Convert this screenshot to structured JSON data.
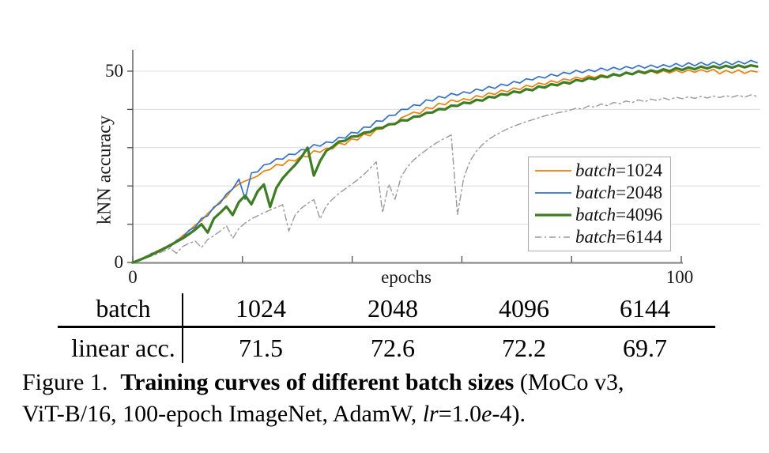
{
  "axes": {
    "y_label": "kNN accuracy",
    "x_label": "epochs",
    "y_tick_top": "50",
    "y_tick_bottom": "0",
    "x_tick_left": "0",
    "x_tick_right": "100"
  },
  "table": {
    "row1_label": "batch",
    "row2_label": "linear acc.",
    "row1_values": [
      "1024",
      "2048",
      "4096",
      "6144"
    ],
    "row2_values": [
      "71.5",
      "72.6",
      "72.2",
      "69.7"
    ]
  },
  "caption": {
    "label": "Figure 1.",
    "title": "Training curves of different batch sizes",
    "after_title": " (MoCo v3,",
    "line2_pre": "ViT-B/16, 100-epoch ImageNet, AdamW, ",
    "lr": "lr",
    "eq": "=1.0",
    "e": "e",
    "tail": "-4)."
  },
  "chart_data": {
    "type": "line",
    "title": "",
    "xlabel": "epochs",
    "ylabel": "kNN accuracy",
    "xlim": [
      0,
      100
    ],
    "ylim": [
      0,
      55
    ],
    "x_step": 1,
    "grid_on": true,
    "grid_values": [
      10,
      20,
      30,
      40,
      50
    ],
    "x_tick_epochs": [
      0,
      20,
      40,
      60,
      80,
      100
    ],
    "y_tick_values": [
      0,
      10,
      20,
      30,
      40,
      50
    ],
    "legend_position": "lower right",
    "axis_color": "#4d4d4d",
    "x_axis_color": "#8c8c8c",
    "grid_color": "#dcdcdc",
    "series": [
      {
        "key": "batch1024",
        "label_name": "batch",
        "label_value": "=1024",
        "color": "#E8820C",
        "width": 1.7,
        "dash": null,
        "values": [
          0,
          0.7,
          1.5,
          2.2,
          3.1,
          3.8,
          4.7,
          5.6,
          7,
          8.2,
          9.8,
          10.9,
          12.8,
          14.2,
          16,
          17.2,
          19.3,
          20.5,
          21.3,
          21.9,
          22.6,
          23.9,
          24.3,
          25.6,
          25.4,
          26.8,
          26.5,
          27.9,
          27.6,
          29.2,
          28.8,
          29.9,
          29.7,
          31.2,
          30.8,
          32.3,
          32,
          33.6,
          33.1,
          34.8,
          34.9,
          36.3,
          36,
          37.8,
          38.5,
          39.3,
          38.9,
          40.5,
          40.2,
          41.6,
          41.2,
          42.5,
          42,
          42.8,
          42.4,
          43.6,
          43.2,
          44.3,
          43.9,
          45,
          44.6,
          45.6,
          45.2,
          46.3,
          45.9,
          46.9,
          46.5,
          47.5,
          47,
          48,
          47.6,
          48.4,
          48,
          48.8,
          48.3,
          49.1,
          48.6,
          49.4,
          48.9,
          49.6,
          49.1,
          49.8,
          49.3,
          50,
          49.4,
          50.1,
          49.5,
          50.2,
          49.6,
          50.3,
          49.7,
          50.4,
          49.8,
          50.5,
          49.3,
          50.2,
          49.5,
          50.3,
          49.4,
          50.1,
          49.8
        ]
      },
      {
        "key": "batch2048",
        "label_name": "batch",
        "label_value": "=2048",
        "color": "#3572C6",
        "width": 1.7,
        "dash": null,
        "values": [
          0,
          0.8,
          1.1,
          2.4,
          2.7,
          3.9,
          4.1,
          5.8,
          6.5,
          8.4,
          9.2,
          11.5,
          12.2,
          14.5,
          15.5,
          17.9,
          19.2,
          21.8,
          16.5,
          23.4,
          23.7,
          25.5,
          25.8,
          27.1,
          27,
          28.3,
          28.2,
          29.5,
          29.4,
          30.8,
          30.4,
          31.5,
          31.3,
          32.7,
          32.5,
          34,
          33.8,
          35.4,
          35.3,
          37,
          36.9,
          38.4,
          38.5,
          40,
          40,
          41.2,
          41,
          42.5,
          42.2,
          43.4,
          43,
          44.2,
          43.7,
          44.6,
          44.2,
          45.3,
          44.9,
          46,
          45.5,
          46.6,
          46.2,
          47.3,
          46.9,
          48,
          47.7,
          48.6,
          48.2,
          49.2,
          48.7,
          49.7,
          49.3,
          50.2,
          49.6,
          50.4,
          49.9,
          50.8,
          50.2,
          51,
          50.4,
          51.2,
          50.7,
          51.5,
          50.8,
          51.6,
          50.9,
          51.7,
          51.1,
          52,
          51.2,
          52.2,
          51.4,
          52.3,
          51.5,
          52.4,
          51.6,
          52.5,
          51.7,
          52.6,
          51.9,
          52.8,
          52.2
        ]
      },
      {
        "key": "batch4096",
        "label_name": "batch",
        "label_value": "=4096",
        "color": "#3E7D23",
        "width": 3.2,
        "dash": null,
        "values": [
          0,
          0.6,
          1.3,
          2,
          2.8,
          3.6,
          4.5,
          5.4,
          6.3,
          7.4,
          8.6,
          10,
          7.8,
          11.5,
          13,
          14.6,
          12.4,
          15.8,
          17.5,
          15.2,
          18.6,
          20.4,
          14.5,
          19.5,
          22,
          23.8,
          25.5,
          27.5,
          30,
          22.7,
          26.5,
          29.2,
          30.2,
          31.6,
          31.8,
          32.9,
          33,
          33.9,
          34.1,
          35.1,
          35.2,
          36.1,
          36.2,
          37.2,
          37.1,
          38.1,
          38.2,
          39.1,
          39.2,
          40.1,
          40,
          41,
          40.9,
          41.8,
          41.6,
          42.5,
          42.3,
          43.3,
          43.1,
          44,
          43.8,
          44.7,
          44.4,
          45.3,
          45,
          46,
          45.7,
          46.6,
          46.3,
          47.1,
          46.8,
          47.7,
          47.4,
          48.2,
          47.9,
          48.7,
          48.4,
          49.2,
          48.8,
          49.6,
          49.2,
          50,
          49.5,
          50.2,
          49.8,
          50.5,
          50,
          50.8,
          50.3,
          51,
          50.5,
          51.2,
          50.7,
          51.3,
          50.8,
          51.4,
          50.9,
          51.5,
          51,
          51.5,
          51.2
        ]
      },
      {
        "key": "batch6144",
        "label_name": "batch",
        "label_value": "=6144",
        "color": "#999999",
        "width": 1.4,
        "dash": "8 4 2 4",
        "values": [
          0,
          0.5,
          1.1,
          1.7,
          2.3,
          3,
          3.7,
          2.4,
          4.2,
          5,
          5.6,
          3.9,
          6,
          7,
          8.2,
          9.6,
          6.3,
          8.9,
          10.3,
          11.4,
          12.2,
          13,
          13.7,
          14.4,
          15.1,
          8.2,
          12.4,
          14.2,
          15.4,
          16.4,
          11.4,
          14.8,
          16.6,
          18,
          19.2,
          20.4,
          21.6,
          23,
          24.6,
          26.3,
          13,
          20.5,
          16.5,
          22.5,
          25,
          26.8,
          28.2,
          29.4,
          30.6,
          31.6,
          32.5,
          33.3,
          12.5,
          22,
          26.5,
          29,
          30.8,
          32.2,
          33.2,
          34.1,
          34.9,
          35.6,
          36.2,
          36.8,
          37.3,
          37.8,
          38.3,
          38.7,
          39.1,
          39.4,
          39.8,
          40.3,
          40.1,
          40.9,
          40.6,
          41.4,
          41,
          41.8,
          41.5,
          42.2,
          41.8,
          42.5,
          42,
          42.7,
          42.3,
          43,
          42.5,
          43.2,
          42.8,
          43.3,
          42.9,
          43.4,
          43,
          43.5,
          43.1,
          43.6,
          43.2,
          43.7,
          43.2,
          43.8,
          43.4
        ]
      }
    ]
  }
}
